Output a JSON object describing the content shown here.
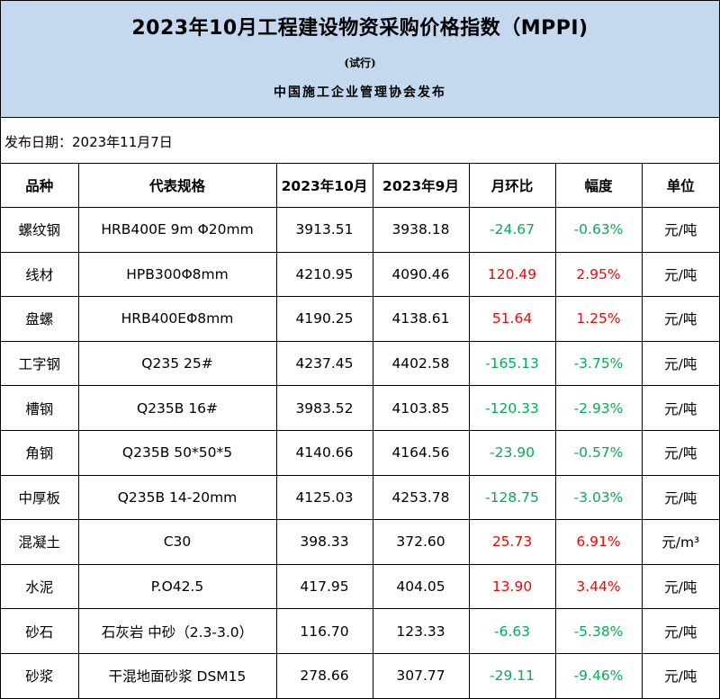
{
  "header": {
    "title": "2023年10月工程建设物资采购价格指数（MPPI)",
    "subtitle": "(试行)",
    "publisher": "中国施工企业管理协会发布"
  },
  "publish_date": "发布日期：2023年11月7日",
  "table": {
    "columns": [
      "品种",
      "代表规格",
      "2023年10月",
      "2023年9月",
      "月环比",
      "幅度",
      "单位"
    ],
    "rows": [
      {
        "item": "螺纹钢",
        "spec": "HRB400E 9m Φ20mm",
        "oct": "3913.51",
        "sep": "3938.18",
        "mom": "-24.67",
        "pct": "-0.63%",
        "unit": "元/吨",
        "trend": "neg"
      },
      {
        "item": "线材",
        "spec": "HPB300Φ8mm",
        "oct": "4210.95",
        "sep": "4090.46",
        "mom": "120.49",
        "pct": "2.95%",
        "unit": "元/吨",
        "trend": "pos"
      },
      {
        "item": "盘螺",
        "spec": "HRB400EΦ8mm",
        "oct": "4190.25",
        "sep": "4138.61",
        "mom": "51.64",
        "pct": "1.25%",
        "unit": "元/吨",
        "trend": "pos"
      },
      {
        "item": "工字钢",
        "spec": "Q235 25#",
        "oct": "4237.45",
        "sep": "4402.58",
        "mom": "-165.13",
        "pct": "-3.75%",
        "unit": "元/吨",
        "trend": "neg"
      },
      {
        "item": "槽钢",
        "spec": "Q235B 16#",
        "oct": "3983.52",
        "sep": "4103.85",
        "mom": "-120.33",
        "pct": "-2.93%",
        "unit": "元/吨",
        "trend": "neg"
      },
      {
        "item": "角钢",
        "spec": "Q235B 50*50*5",
        "oct": "4140.66",
        "sep": "4164.56",
        "mom": "-23.90",
        "pct": "-0.57%",
        "unit": "元/吨",
        "trend": "neg"
      },
      {
        "item": "中厚板",
        "spec": "Q235B 14-20mm",
        "oct": "4125.03",
        "sep": "4253.78",
        "mom": "-128.75",
        "pct": "-3.03%",
        "unit": "元/吨",
        "trend": "neg"
      },
      {
        "item": "混凝土",
        "spec": "C30",
        "oct": "398.33",
        "sep": "372.60",
        "mom": "25.73",
        "pct": "6.91%",
        "unit": "元/m³",
        "trend": "pos"
      },
      {
        "item": "水泥",
        "spec": "P.O42.5",
        "oct": "417.95",
        "sep": "404.05",
        "mom": "13.90",
        "pct": "3.44%",
        "unit": "元/吨",
        "trend": "pos"
      },
      {
        "item": "砂石",
        "spec": "石灰岩 中砂（2.3-3.0）",
        "oct": "116.70",
        "sep": "123.33",
        "mom": "-6.63",
        "pct": "-5.38%",
        "unit": "元/吨",
        "trend": "neg"
      },
      {
        "item": "砂浆",
        "spec": "干混地面砂浆 DSM15",
        "oct": "278.66",
        "sep": "307.77",
        "mom": "-29.11",
        "pct": "-9.46%",
        "unit": "元/吨",
        "trend": "neg"
      }
    ]
  },
  "colors": {
    "header_bg": "#c4d8ef",
    "increase": "#ff0000",
    "decrease": "#00b050"
  }
}
